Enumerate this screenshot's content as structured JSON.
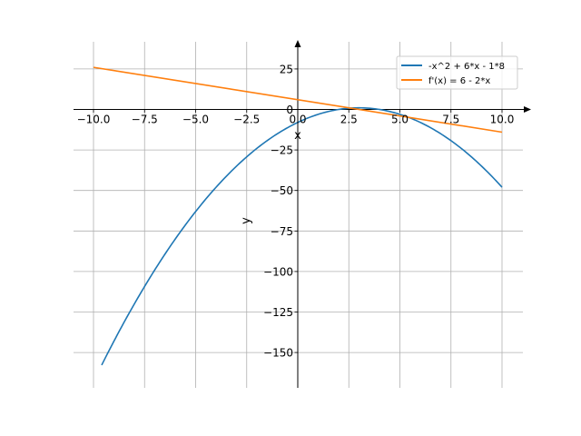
{
  "chart_data": {
    "type": "line",
    "xlabel": "x",
    "ylabel": "y",
    "xlim": [
      -11.0,
      11.5
    ],
    "ylim": [
      -172,
      40
    ],
    "grid": true,
    "legend_position": "top-right",
    "x_ticks": [
      -10.0,
      -7.5,
      -5.0,
      -2.5,
      0.0,
      2.5,
      5.0,
      7.5,
      10.0
    ],
    "x_tick_labels": [
      "−10.0",
      "−7.5",
      "−5.0",
      "−2.5",
      "0.0",
      "2.5",
      "5.0",
      "7.5",
      "10.0"
    ],
    "y_ticks": [
      25,
      0,
      -25,
      -50,
      -75,
      -100,
      -125,
      -150
    ],
    "y_tick_labels": [
      "25",
      "0",
      "−25",
      "−50",
      "−75",
      "−100",
      "−125",
      "−150"
    ],
    "series": [
      {
        "name": "-x^2 + 6*x - 1*8",
        "color": "#1f77b4",
        "x": [
          -9.6,
          -9,
          -8,
          -7,
          -6,
          -5,
          -4,
          -3,
          -2,
          -1,
          0,
          1,
          2,
          3,
          4,
          5,
          6,
          7,
          8,
          9,
          10
        ],
        "y": [
          -157.76,
          -143,
          -120,
          -99,
          -80,
          -63,
          -48,
          -35,
          -24,
          -15,
          -8,
          -3,
          0,
          1,
          0,
          -3,
          -8,
          -15,
          -24,
          -35,
          -48
        ]
      },
      {
        "name": "f'(x) = 6 - 2*x",
        "color": "#ff7f0e",
        "x": [
          -10,
          10
        ],
        "y": [
          26,
          -14
        ]
      }
    ]
  }
}
